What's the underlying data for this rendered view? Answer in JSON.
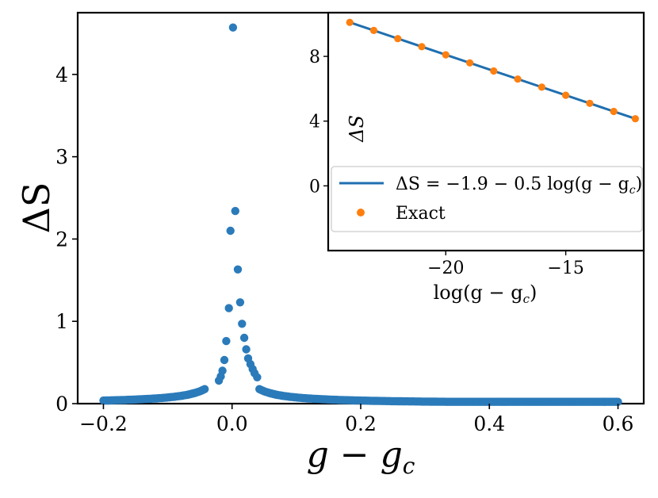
{
  "chart_data": [
    {
      "type": "scatter",
      "xlabel": "g − g",
      "xlabel_sub": "c",
      "ylabel": "ΔS",
      "xlim": [
        -0.24,
        0.64
      ],
      "ylim": [
        0,
        4.75
      ],
      "xticks": [
        -0.2,
        0.0,
        0.2,
        0.4,
        0.6
      ],
      "xtick_labels": [
        "−0.2",
        "0.0",
        "0.2",
        "0.4",
        "0.6"
      ],
      "yticks": [
        0,
        1,
        2,
        3,
        4
      ],
      "ytick_labels": [
        "0",
        "1",
        "2",
        "3",
        "4"
      ],
      "grid": false,
      "color": "#2b7bba",
      "series": [
        {
          "x": [
            0.0015,
            0.005,
            -0.0025,
            0.009,
            -0.005,
            0.0125,
            -0.009,
            0.0155,
            -0.012,
            0.019,
            -0.015,
            0.022,
            -0.0175,
            0.025,
            -0.0205,
            0.0285,
            0.032,
            0.035,
            0.039
          ],
          "y": [
            4.57,
            2.34,
            2.1,
            1.63,
            1.16,
            1.23,
            0.76,
            0.97,
            0.53,
            0.8,
            0.4,
            0.66,
            0.33,
            0.55,
            0.28,
            0.48,
            0.42,
            0.37,
            0.32
          ]
        }
      ],
      "curve_note": "dense markers along ΔS ≈ 0.0075/|g − g_c| from g − g_c = −0.2 to 0.6"
    },
    {
      "type": "line",
      "xlabel": "log(g − g",
      "xlabel_sub": "c",
      "xlabel_end": ")",
      "ylabel": "ΔS",
      "xlim": [
        -24.9,
        -11.75
      ],
      "ylim": [
        -4.0,
        10.7
      ],
      "xticks": [
        -20,
        -15
      ],
      "xtick_labels": [
        "−20",
        "−15"
      ],
      "yticks": [
        0,
        4,
        8
      ],
      "ytick_labels": [
        "0",
        "4",
        "8"
      ],
      "legend_position": "lower-right",
      "series": [
        {
          "name_main": "ΔS = −1.9 − 0.5 log(g − g",
          "name_sub": "c",
          "name_end": ")",
          "color": "#1f6fb0",
          "x": [
            -24.0,
            -12.1
          ],
          "y": [
            10.1,
            4.15
          ]
        },
        {
          "name": "Exact",
          "color": "#ff7f0e",
          "x": [
            -24.0,
            -23.0,
            -22.0,
            -21.0,
            -20.0,
            -19.0,
            -18.0,
            -17.0,
            -16.0,
            -15.0,
            -14.0,
            -13.0,
            -12.1
          ],
          "y": [
            10.1,
            9.6,
            9.1,
            8.6,
            8.1,
            7.6,
            7.1,
            6.6,
            6.1,
            5.6,
            5.1,
            4.6,
            4.15
          ]
        }
      ]
    }
  ]
}
